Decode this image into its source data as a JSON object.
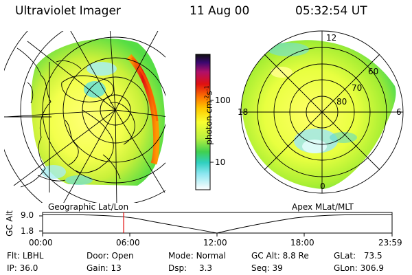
{
  "header": {
    "title": "Ultraviolet Imager",
    "date": "11 Aug 00",
    "time": "05:32:54 UT"
  },
  "colorbar": {
    "label": "photon cm",
    "label_sup1": "-2",
    "label_mid": "s",
    "label_sup2": "-1",
    "ticks": [
      "100",
      "10"
    ]
  },
  "left_panel": {
    "caption": "Geographic Lat/Lon"
  },
  "right_panel": {
    "caption": "Apex MLat/MLT",
    "mlt_labels": [
      "12",
      "18",
      "6",
      "0"
    ],
    "mlat_labels": [
      "60",
      "70",
      "80"
    ]
  },
  "altitude_plot": {
    "ylabel": "GC Alt",
    "ytick_top": "9.0",
    "ytick_bottom": "1.8",
    "xticks": [
      "00:00",
      "06:00",
      "12:00",
      "18:00",
      "23:59"
    ],
    "marker_fraction": 0.232
  },
  "info": {
    "flt_label": "Flt:",
    "flt_value": "LBHL",
    "ip_label": "IP:",
    "ip_value": "36.0",
    "door_label": "Door:",
    "door_value": "Open",
    "gain_label": "Gain:",
    "gain_value": "13",
    "mode_label": "Mode:",
    "mode_value": "Normal",
    "dsp_label": "Dsp:",
    "dsp_value": "3.3",
    "gcalt_label": "GC Alt:",
    "gcalt_value": "8.8 Re",
    "seq_label": "Seq:",
    "seq_value": "39",
    "glat_label": "GLat:",
    "glat_value": "73.5",
    "glon_label": "GLon:",
    "glon_value": "306.9"
  }
}
